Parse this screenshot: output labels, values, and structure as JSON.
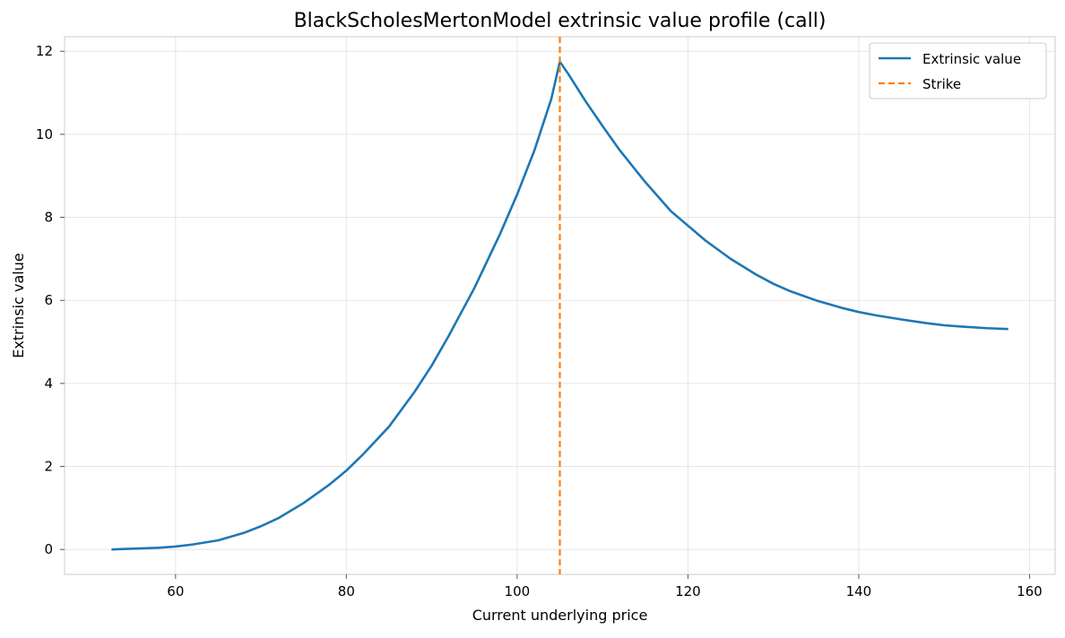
{
  "chart_data": {
    "type": "line",
    "title": "BlackScholesMertonModel extrinsic value profile (call)",
    "xlabel": "Current underlying price",
    "ylabel": "Extrinsic value",
    "xlim": [
      47,
      163
    ],
    "ylim": [
      -0.6,
      12.35
    ],
    "xticks": [
      60,
      80,
      100,
      120,
      140,
      160
    ],
    "yticks": [
      0,
      2,
      4,
      6,
      8,
      10,
      12
    ],
    "grid": true,
    "legend_position": "top-right",
    "strike": 105,
    "series": [
      {
        "name": "Extrinsic value",
        "color": "#1f77b4",
        "style": "solid",
        "x": [
          52.5,
          55,
          58,
          60,
          62,
          65,
          68,
          70,
          72,
          75,
          78,
          80,
          82,
          85,
          88,
          90,
          92,
          95,
          98,
          100,
          102,
          104,
          105,
          106,
          108,
          110,
          112,
          115,
          118,
          120,
          122,
          125,
          128,
          130,
          132,
          135,
          138,
          140,
          142,
          145,
          148,
          150,
          152,
          155,
          157.5
        ],
        "y": [
          0.0,
          0.02,
          0.04,
          0.07,
          0.12,
          0.22,
          0.4,
          0.56,
          0.75,
          1.12,
          1.56,
          1.9,
          2.3,
          2.96,
          3.8,
          4.43,
          5.15,
          6.3,
          7.6,
          8.55,
          9.6,
          10.85,
          11.75,
          11.45,
          10.8,
          10.2,
          9.62,
          8.85,
          8.15,
          7.8,
          7.45,
          7.0,
          6.62,
          6.4,
          6.22,
          6.0,
          5.82,
          5.72,
          5.64,
          5.54,
          5.45,
          5.4,
          5.37,
          5.33,
          5.31
        ]
      },
      {
        "name": "Strike",
        "color": "#ff7f0e",
        "style": "dashed"
      }
    ]
  }
}
